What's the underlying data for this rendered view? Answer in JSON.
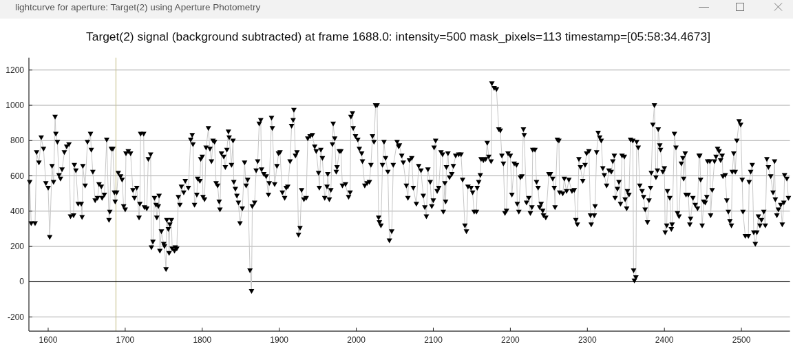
{
  "chart_data": {
    "type": "line",
    "title": "Target(2) signal (background subtracted) at frame 1688.0: intensity=500 mask_pixels=113 timestamp=[05:58:34.4673]",
    "annotations": [
      "lightcurve for aperture: Target(2) using Aperture Photometry"
    ],
    "xlim": [
      1575,
      2563
    ],
    "ylim": [
      -280,
      1270
    ],
    "xticks": [
      1600,
      1700,
      1800,
      1900,
      2000,
      2100,
      2200,
      2300,
      2400,
      2500
    ],
    "yticks": [
      -200,
      0,
      200,
      400,
      600,
      800,
      1000,
      1200
    ],
    "grid": "y",
    "marker": "triangle",
    "line_style": "solid",
    "ref_lines": [
      {
        "axis": "x",
        "value": 1688,
        "color": "#c9c596"
      },
      {
        "axis": "y",
        "value": 0,
        "color": "#000000"
      }
    ],
    "series": [
      {
        "color": "#000000",
        "x": [
          1576,
          1578,
          1583,
          1585,
          1588,
          1591,
          1594,
          1597,
          1600,
          1602,
          1605,
          1607,
          1609,
          1610,
          1612,
          1614,
          1616,
          1618,
          1621,
          1624,
          1627,
          1629,
          1633,
          1634,
          1636,
          1639,
          1643,
          1644,
          1645,
          1648,
          1651,
          1655,
          1656,
          1658,
          1661,
          1664,
          1666,
          1669,
          1670,
          1673,
          1676,
          1679,
          1680,
          1682,
          1684,
          1686,
          1687,
          1689,
          1691,
          1694,
          1696,
          1698,
          1700,
          1701,
          1704,
          1707,
          1710,
          1712,
          1715,
          1718,
          1719,
          1720,
          1724,
          1725,
          1728,
          1730,
          1733,
          1734,
          1736,
          1738,
          1740,
          1741,
          1743,
          1744,
          1745,
          1747,
          1750,
          1751,
          1753,
          1754,
          1756,
          1757,
          1758,
          1760,
          1761,
          1764,
          1765,
          1767,
          1769,
          1771,
          1773,
          1776,
          1778,
          1782,
          1785,
          1787,
          1788,
          1790,
          1793,
          1794,
          1797,
          1798,
          1800,
          1801,
          1803,
          1805,
          1808,
          1810,
          1812,
          1814,
          1816,
          1818,
          1820,
          1822,
          1823,
          1825,
          1828,
          1830,
          1832,
          1834,
          1835,
          1838,
          1840,
          1841,
          1843,
          1845,
          1847,
          1849,
          1852,
          1855,
          1857,
          1859,
          1862,
          1864,
          1865,
          1868,
          1870,
          1872,
          1874,
          1876,
          1877,
          1880,
          1883,
          1886,
          1887,
          1890,
          1891,
          1894,
          1897,
          1899,
          1901,
          1904,
          1907,
          1909,
          1911,
          1914,
          1916,
          1918,
          1919,
          1921,
          1923,
          1925,
          1927,
          1929,
          1932,
          1935,
          1937,
          1940,
          1943,
          1946,
          1948,
          1951,
          1952,
          1954,
          1956,
          1959,
          1962,
          1963,
          1965,
          1967,
          1969,
          1970,
          1972,
          1974,
          1975,
          1978,
          1980,
          1982,
          1986,
          1990,
          1992,
          1993,
          1995,
          1996,
          1999,
          2002,
          2004,
          2007,
          2008,
          2011,
          2014,
          2017,
          2019,
          2021,
          2023,
          2025,
          2027,
          2029,
          2030,
          2032,
          2034,
          2036,
          2038,
          2041,
          2043,
          2046,
          2048,
          2053,
          2055,
          2056,
          2059,
          2061,
          2065,
          2067,
          2069,
          2072,
          2074,
          2078,
          2081,
          2084,
          2087,
          2089,
          2091,
          2093,
          2096,
          2098,
          2100,
          2101,
          2103,
          2105,
          2107,
          2110,
          2112,
          2113,
          2115,
          2116,
          2117,
          2119,
          2121,
          2124,
          2126,
          2129,
          2133,
          2136,
          2138,
          2141,
          2143,
          2145,
          2149,
          2151,
          2153,
          2156,
          2157,
          2159,
          2161,
          2162,
          2165,
          2168,
          2170,
          2172,
          2175,
          2176,
          2179,
          2182,
          2185,
          2187,
          2189,
          2191,
          2193,
          2195,
          2197,
          2200,
          2202,
          2205,
          2208,
          2209,
          2211,
          2213,
          2215,
          2217,
          2218,
          2221,
          2224,
          2226,
          2228,
          2229,
          2232,
          2234,
          2236,
          2238,
          2240,
          2242,
          2243,
          2246,
          2250,
          2252,
          2255,
          2257,
          2258,
          2261,
          2263,
          2264,
          2268,
          2270,
          2273,
          2276,
          2280,
          2283,
          2285,
          2287,
          2289,
          2291,
          2294,
          2297,
          2299,
          2302,
          2304,
          2305,
          2309,
          2310,
          2312,
          2314,
          2316,
          2318,
          2320,
          2322,
          2325,
          2328,
          2331,
          2333,
          2335,
          2336,
          2339,
          2341,
          2343,
          2345,
          2348,
          2349,
          2351,
          2352,
          2354,
          2356,
          2359,
          2360,
          2361,
          2363,
          2364,
          2366,
          2368,
          2371,
          2373,
          2375,
          2378,
          2380,
          2382,
          2383,
          2385,
          2387,
          2389,
          2391,
          2392,
          2394,
          2395,
          2398,
          2400,
          2401,
          2403,
          2404,
          2407,
          2409,
          2410,
          2413,
          2415,
          2417,
          2419,
          2422,
          2424,
          2425,
          2427,
          2428,
          2431,
          2433,
          2434,
          2437,
          2440,
          2443,
          2445,
          2446,
          2447,
          2449,
          2451,
          2453,
          2455,
          2456,
          2459,
          2460,
          2462,
          2465,
          2467,
          2469,
          2471,
          2473,
          2475,
          2476,
          2479,
          2481,
          2483,
          2485,
          2487,
          2488,
          2490,
          2492,
          2494,
          2497,
          2499,
          2501,
          2502,
          2505,
          2509,
          2510,
          2512,
          2514,
          2516,
          2518,
          2520,
          2522,
          2524,
          2526,
          2529,
          2531,
          2533,
          2535,
          2538,
          2541,
          2543,
          2544,
          2546,
          2548,
          2551,
          2553,
          2555,
          2556,
          2559,
          2561
        ],
        "values": [
          563,
          329,
          329,
          732,
          673,
          816,
          751,
          556,
          530,
          251,
          654,
          563,
          933,
          836,
          790,
          602,
          582,
          634,
          732,
          764,
          777,
          368,
          374,
          660,
          628,
          439,
          439,
          364,
          654,
          543,
          790,
          836,
          745,
          621,
          459,
          472,
          550,
          537,
          472,
          491,
          803,
          348,
          394,
          751,
          751,
          504,
          452,
          504,
          615,
          595,
          576,
          426,
          407,
          725,
          738,
          725,
          517,
          472,
          530,
          361,
          439,
          836,
          836,
          420,
          413,
          693,
          719,
          192,
          225,
          472,
          433,
          361,
          426,
          485,
          173,
          283,
          212,
          199,
          69,
          348,
          296,
          160,
          322,
          348,
          186,
          173,
          192,
          186,
          478,
          433,
          537,
          504,
          569,
          530,
          803,
          829,
          777,
          433,
          491,
          582,
          569,
          693,
          706,
          478,
          465,
          758,
          868,
          751,
          680,
          797,
          790,
          556,
          543,
          452,
          407,
          725,
          706,
          647,
          745,
          849,
          816,
          660,
          797,
          563,
          524,
          485,
          446,
          329,
          413,
          673,
          543,
          576,
          62,
          -55,
          426,
          446,
          628,
          680,
          894,
          914,
          634,
          608,
          595,
          491,
          556,
          927,
          868,
          550,
          654,
          725,
          732,
          504,
          472,
          530,
          537,
          680,
          881,
          914,
          972,
          712,
          732,
          264,
          303,
          517,
          465,
          472,
          810,
          823,
          829,
          764,
          738,
          615,
          530,
          745,
          699,
          472,
          537,
          608,
          465,
          517,
          777,
          894,
          810,
          621,
          647,
          738,
          738,
          543,
          550,
          478,
          504,
          933,
          953,
          868,
          823,
          803,
          751,
          725,
          680,
          543,
          556,
          563,
          660,
          823,
          790,
          998,
          998,
          361,
          335,
          316,
          660,
          790,
          699,
          621,
          231,
          283,
          660,
          790,
          764,
          771,
          712,
          673,
          543,
          472,
          686,
          699,
          530,
          439,
          654,
          628,
          485,
          420,
          368,
          634,
          563,
          426,
          459,
          758,
          797,
          511,
          530,
          732,
          719,
          394,
          556,
          452,
          647,
          725,
          589,
          608,
          654,
          712,
          719,
          719,
          576,
          316,
          283,
          537,
          530,
          504,
          394,
          394,
          530,
          563,
          602,
          693,
          686,
          693,
          784,
          706,
          680,
          1122,
          1096,
          1089,
          862,
          855,
          712,
          667,
          387,
          400,
          725,
          712,
          491,
          667,
          660,
          439,
          394,
          589,
          595,
          862,
          829,
          446,
          472,
          387,
          420,
          745,
          745,
          563,
          530,
          420,
          439,
          400,
          374,
          361,
          608,
          608,
          582,
          530,
          420,
          803,
          797,
          504,
          498,
          582,
          511,
          576,
          511,
          517,
          348,
          322,
          693,
          647,
          569,
          660,
          725,
          738,
          374,
          322,
          374,
          426,
          732,
          842,
          816,
          797,
          641,
          602,
          543,
          628,
          621,
          680,
          712,
          472,
          524,
          563,
          439,
          712,
          706,
          465,
          413,
          511,
          491,
          803,
          797,
          62,
          4,
          23,
          790,
          758,
          543,
          511,
          478,
          407,
          335,
          459,
          530,
          615,
          888,
          998,
          589,
          628,
          862,
          771,
          745,
          621,
          641,
          277,
          316,
          511,
          472,
          296,
          322,
          836,
          758,
          387,
          368,
          667,
          699,
          582,
          725,
          491,
          491,
          322,
          355,
          472,
          433,
          413,
          712,
          712,
          576,
          316,
          452,
          446,
          478,
          680,
          680,
          374,
          517,
          680,
          706,
          751,
          738,
          686,
          712,
          595,
          602,
          459,
          394,
          342,
          316,
          621,
          725,
          621,
          797,
          907,
          888,
          576,
          394,
          257,
          257,
          563,
          621,
          660,
          277,
          212,
          277,
          368,
          316,
          348,
          394,
          316,
          693,
          647,
          595,
          504,
          680,
          465,
          374,
          407,
          433,
          322,
          446,
          602,
          582,
          472
        ]
      }
    ]
  }
}
